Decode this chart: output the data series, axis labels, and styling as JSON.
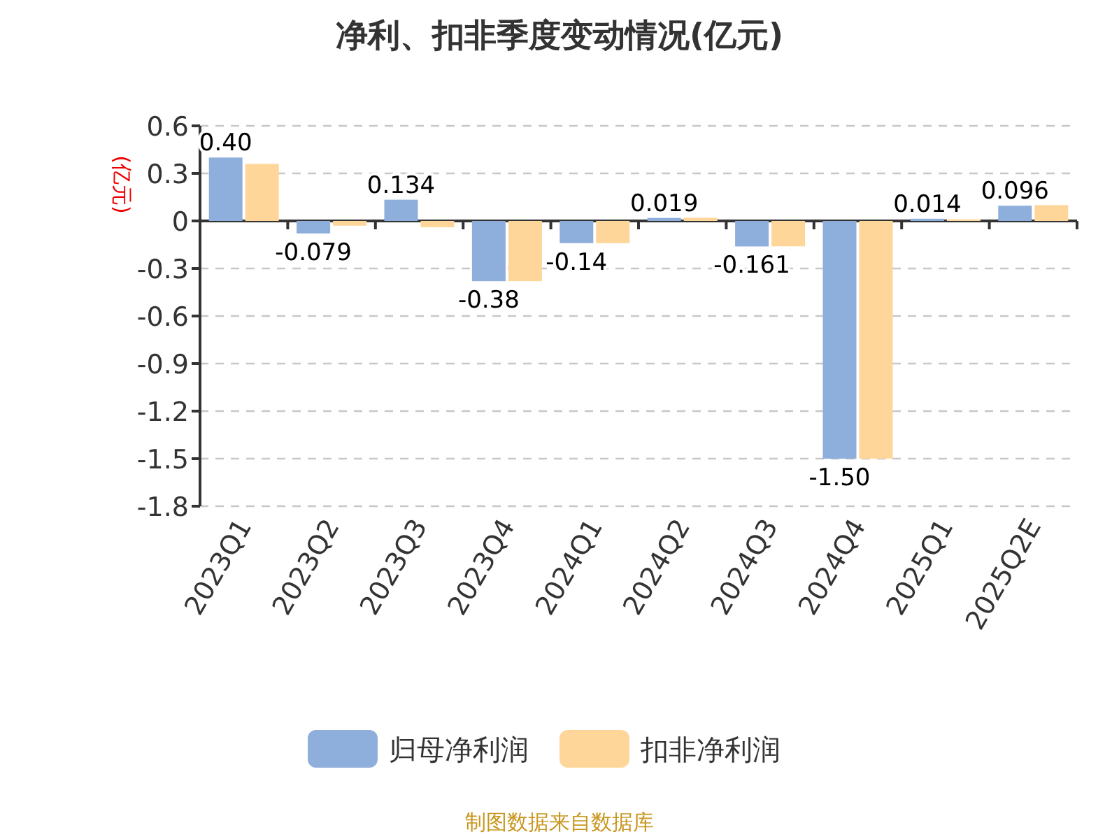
{
  "chart_data": {
    "type": "bar",
    "title": "净利、扣非季度变动情况(亿元)",
    "ylabel": "(亿元)",
    "categories": [
      "2023Q1",
      "2023Q2",
      "2023Q3",
      "2023Q4",
      "2024Q1",
      "2024Q2",
      "2024Q3",
      "2024Q4",
      "2025Q1",
      "2025Q2E"
    ],
    "series": [
      {
        "name": "归母净利润",
        "color": "#8eaedb",
        "values": [
          0.4,
          -0.079,
          0.134,
          -0.38,
          -0.14,
          0.019,
          -0.161,
          -1.5,
          0.014,
          0.096
        ],
        "value_labels": [
          "0.40",
          "-0.079",
          "0.134",
          "-0.38",
          "-0.14",
          "0.019",
          "-0.161",
          "-1.50",
          "0.014",
          "0.096"
        ]
      },
      {
        "name": "扣非净利润",
        "color": "#ffd699",
        "values": [
          0.36,
          -0.03,
          -0.04,
          -0.38,
          -0.14,
          0.02,
          -0.16,
          -1.5,
          0.01,
          0.1
        ]
      }
    ],
    "ylim": [
      -1.8,
      0.6
    ],
    "yticks": [
      -1.8,
      -1.5,
      -1.2,
      -0.9,
      -0.6,
      -0.3,
      0,
      0.3,
      0.6
    ],
    "grid": "y",
    "legend": "bottom",
    "annotations": [
      "制图数据来自数据库"
    ]
  }
}
